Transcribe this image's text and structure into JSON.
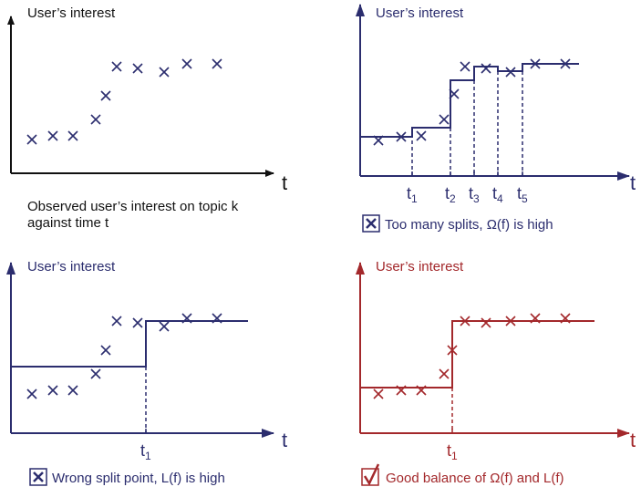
{
  "colors": {
    "axis_black": "#111111",
    "blue": "#2b2d6e",
    "red": "#a3282b"
  },
  "panels": [
    {
      "y_label": "User’s interest",
      "x_label": "t",
      "caption_lines": [
        "Observed user’s interest on topic k",
        "against time t"
      ]
    },
    {
      "y_label": "User’s interest",
      "x_label": "t",
      "ticks": [
        {
          "base": "t",
          "sub": "1"
        },
        {
          "base": "t",
          "sub": "2"
        },
        {
          "base": "t",
          "sub": "3"
        },
        {
          "base": "t",
          "sub": "4"
        },
        {
          "base": "t",
          "sub": "5"
        }
      ],
      "caption": "Too many splits, Ω(f)  is high",
      "caption_icon": "cross-box-icon"
    },
    {
      "y_label": "User’s interest",
      "x_label": "t",
      "ticks": [
        {
          "base": "t",
          "sub": "1"
        }
      ],
      "caption": "Wrong split point, L(f) is high",
      "caption_icon": "cross-box-icon"
    },
    {
      "y_label": "User’s interest",
      "x_label": "t",
      "ticks": [
        {
          "base": "t",
          "sub": "1"
        }
      ],
      "caption": "Good balance of Ω(f) and L(f)",
      "caption_icon": "check-box-icon"
    }
  ]
}
